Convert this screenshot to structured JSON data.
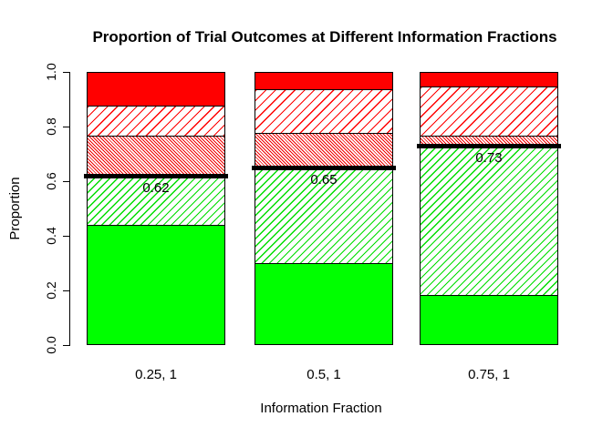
{
  "chart_data": {
    "type": "bar",
    "subtype": "stacked-proportion",
    "title": "Proportion of Trial Outcomes at Different Information Fractions",
    "xlabel": "Information Fraction",
    "ylabel": "Proportion",
    "ylim": [
      0,
      1
    ],
    "yticks": [
      0,
      0.2,
      0.4,
      0.6,
      0.8,
      1
    ],
    "ytick_labels": [
      "0.0",
      "0.2",
      "0.4",
      "0.6",
      "0.8",
      "1.0"
    ],
    "categories": [
      "0.25, 1",
      "0.5, 1",
      "0.75, 1"
    ],
    "series": [
      {
        "name": "solid-green",
        "fill": "solid",
        "color": "#00FF00",
        "values": [
          0.44,
          0.3,
          0.18
        ]
      },
      {
        "name": "green-hatch",
        "fill": "hatch-forward",
        "color": "#00DD00",
        "values": [
          0.18,
          0.35,
          0.55
        ]
      },
      {
        "name": "red-dense-hatch",
        "fill": "hatch-back-dense",
        "color": "#FF0000",
        "values": [
          0.15,
          0.13,
          0.04
        ]
      },
      {
        "name": "red-hatch",
        "fill": "hatch-forward",
        "color": "#FF0000",
        "values": [
          0.11,
          0.16,
          0.18
        ]
      },
      {
        "name": "solid-red",
        "fill": "solid",
        "color": "#FF0000",
        "values": [
          0.12,
          0.06,
          0.05
        ]
      }
    ],
    "threshold_lines": {
      "color": "#000000",
      "values": [
        0.62,
        0.65,
        0.73
      ],
      "labels": [
        "0.62",
        "0.65",
        "0.73"
      ]
    },
    "grid": false,
    "legend": "none",
    "background": "#FFFFFF"
  }
}
